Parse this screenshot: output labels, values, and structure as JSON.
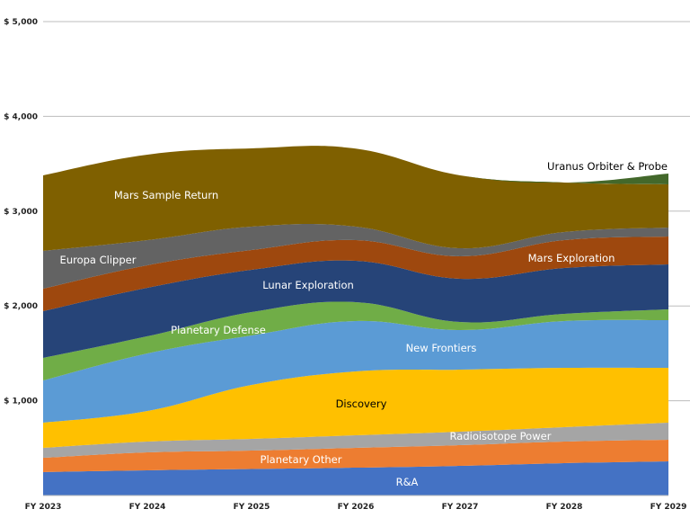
{
  "chart_data": {
    "type": "area",
    "stacked": true,
    "title": "",
    "xlabel": "",
    "ylabel": "",
    "categories": [
      "FY 2023",
      "FY 2024",
      "FY 2025",
      "FY 2026",
      "FY 2027",
      "FY 2028",
      "FY 2029"
    ],
    "ylim": [
      0,
      5000
    ],
    "yticks": [
      1000,
      2000,
      3000,
      4000,
      5000
    ],
    "ytick_labels": [
      "$ 1,000",
      "$ 2,000",
      "$ 3,000",
      "$ 4,000",
      "$ 5,000"
    ],
    "grid": true,
    "legend": "none (inline labels)",
    "series": [
      {
        "name": "R&A",
        "color": "#4472C4",
        "label_color": "#ffffff",
        "values": [
          247,
          266,
          280,
          294,
          313,
          342,
          361
        ]
      },
      {
        "name": "Planetary Other",
        "color": "#ED7D31",
        "label_color": "#ffffff",
        "values": [
          151,
          189,
          194,
          209,
          218,
          227,
          227
        ]
      },
      {
        "name": "Radioisotope Power",
        "color": "#A5A5A5",
        "label_color": "#ffffff",
        "values": [
          105,
          114,
          124,
          133,
          143,
          152,
          180
        ]
      },
      {
        "name": "Discovery",
        "color": "#FFC000",
        "label_color": "#000000",
        "values": [
          265,
          323,
          569,
          673,
          654,
          626,
          579
        ]
      },
      {
        "name": "New Frontiers",
        "color": "#5B9BD5",
        "label_color": "#ffffff",
        "values": [
          446,
          607,
          522,
          532,
          418,
          494,
          503
        ]
      },
      {
        "name": "Planetary Defense",
        "color": "#70AD47",
        "label_color": "#ffffff",
        "values": [
          238,
          181,
          246,
          199,
          85,
          76,
          114
        ]
      },
      {
        "name": "Lunar Exploration",
        "color": "#264478",
        "label_color": "#ffffff",
        "values": [
          493,
          512,
          446,
          436,
          456,
          483,
          474
        ]
      },
      {
        "name": "Mars Exploration",
        "color": "#9E480E",
        "label_color": "#ffffff",
        "values": [
          237,
          237,
          209,
          218,
          237,
          294,
          294
        ]
      },
      {
        "name": "Europa Clipper",
        "color": "#636363",
        "label_color": "#ffffff",
        "values": [
          399,
          265,
          247,
          143,
          85,
          86,
          95
        ]
      },
      {
        "name": "Mars Sample Return",
        "color": "#7F6000",
        "label_color": "#ffffff",
        "values": [
          797,
          902,
          825,
          823,
          769,
          522,
          456
        ]
      },
      {
        "name": "Uranus Orbiter & Probe",
        "color": "#43682B",
        "label_color": "#000000",
        "values": [
          0,
          0,
          0,
          0,
          0,
          0,
          114
        ]
      }
    ]
  }
}
